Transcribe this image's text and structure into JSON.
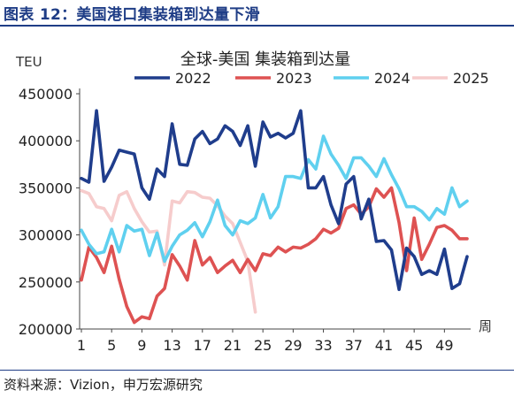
{
  "header": {
    "title": "图表 12：美国港口集装箱到达量下滑"
  },
  "source": "资料来源：Vizion，申万宏源研究",
  "chart_data": {
    "type": "line",
    "title": "全球-美国 集装箱到达量",
    "ylabel": "TEU",
    "xlabel": "周",
    "ylim": [
      200000,
      450000
    ],
    "yticks": [
      200000,
      250000,
      300000,
      350000,
      400000,
      450000
    ],
    "xticks": [
      1,
      5,
      9,
      13,
      17,
      21,
      25,
      29,
      33,
      37,
      41,
      45,
      49
    ],
    "legend_position": "top",
    "grid": false,
    "series": [
      {
        "name": "2022",
        "color": "#1f3d8c",
        "x": [
          1,
          2,
          3,
          4,
          5,
          6,
          7,
          8,
          9,
          10,
          11,
          12,
          13,
          14,
          15,
          16,
          17,
          18,
          19,
          20,
          21,
          22,
          23,
          24,
          25,
          26,
          27,
          28,
          29,
          30,
          31,
          32,
          33,
          34,
          35,
          36,
          37,
          38,
          39,
          40,
          41,
          42,
          43,
          44,
          45,
          46,
          47,
          48,
          49,
          50,
          51,
          52
        ],
        "values": [
          360000,
          356000,
          432000,
          357000,
          372000,
          390000,
          388000,
          386000,
          350000,
          338000,
          370000,
          362000,
          418000,
          375000,
          374000,
          402000,
          410000,
          397000,
          402000,
          416000,
          410000,
          395000,
          416000,
          373000,
          420000,
          404000,
          408000,
          403000,
          408000,
          432000,
          350000,
          350000,
          362000,
          332000,
          312000,
          354000,
          362000,
          317000,
          338000,
          293000,
          294000,
          284000,
          242000,
          286000,
          277000,
          258000,
          262000,
          258000,
          285000,
          243000,
          248000,
          277000
        ]
      },
      {
        "name": "2023",
        "color": "#de5252",
        "x": [
          1,
          2,
          3,
          4,
          5,
          6,
          7,
          8,
          9,
          10,
          11,
          12,
          13,
          14,
          15,
          16,
          17,
          18,
          19,
          20,
          21,
          22,
          23,
          24,
          25,
          26,
          27,
          28,
          29,
          30,
          31,
          32,
          33,
          34,
          35,
          36,
          37,
          38,
          39,
          40,
          41,
          42,
          43,
          44,
          45,
          46,
          47,
          48,
          49,
          50,
          51,
          52
        ],
        "values": [
          252000,
          287000,
          276000,
          260000,
          288000,
          253000,
          224000,
          207000,
          213000,
          211000,
          235000,
          243000,
          279000,
          267000,
          252000,
          294000,
          268000,
          276000,
          260000,
          267000,
          273000,
          260000,
          274000,
          262000,
          280000,
          278000,
          287000,
          282000,
          287000,
          286000,
          290000,
          296000,
          306000,
          302000,
          307000,
          328000,
          332000,
          322000,
          330000,
          349000,
          340000,
          350000,
          313000,
          262000,
          318000,
          274000,
          290000,
          308000,
          310000,
          305000,
          296000,
          296000
        ]
      },
      {
        "name": "2024",
        "color": "#5fd0ef",
        "x": [
          1,
          2,
          3,
          4,
          5,
          6,
          7,
          8,
          9,
          10,
          11,
          12,
          13,
          14,
          15,
          16,
          17,
          18,
          19,
          20,
          21,
          22,
          23,
          24,
          25,
          26,
          27,
          28,
          29,
          30,
          31,
          32,
          33,
          34,
          35,
          36,
          37,
          38,
          39,
          40,
          41,
          42,
          43,
          44,
          45,
          46,
          47,
          48,
          49,
          50,
          51,
          52
        ],
        "values": [
          305000,
          290000,
          280000,
          282000,
          306000,
          282000,
          310000,
          304000,
          306000,
          278000,
          302000,
          272000,
          288000,
          300000,
          305000,
          313000,
          298000,
          314000,
          337000,
          310000,
          300000,
          315000,
          312000,
          318000,
          343000,
          318000,
          330000,
          362000,
          362000,
          360000,
          380000,
          370000,
          405000,
          386000,
          374000,
          360000,
          382000,
          382000,
          373000,
          362000,
          381000,
          364000,
          349000,
          330000,
          330000,
          325000,
          316000,
          328000,
          322000,
          350000,
          330000,
          336000
        ]
      },
      {
        "name": "2025",
        "color": "#f6cccc",
        "x": [
          1,
          2,
          3,
          4,
          5,
          6,
          7,
          8,
          9,
          10,
          11,
          12,
          13,
          14,
          15,
          16,
          17,
          18,
          19,
          20,
          21,
          22,
          23,
          24
        ],
        "values": [
          347000,
          344000,
          330000,
          328000,
          315000,
          342000,
          346000,
          328000,
          314000,
          303000,
          304000,
          268000,
          336000,
          334000,
          346000,
          345000,
          340000,
          339000,
          331000,
          320000,
          312000,
          292000,
          272000,
          218000
        ]
      }
    ]
  }
}
